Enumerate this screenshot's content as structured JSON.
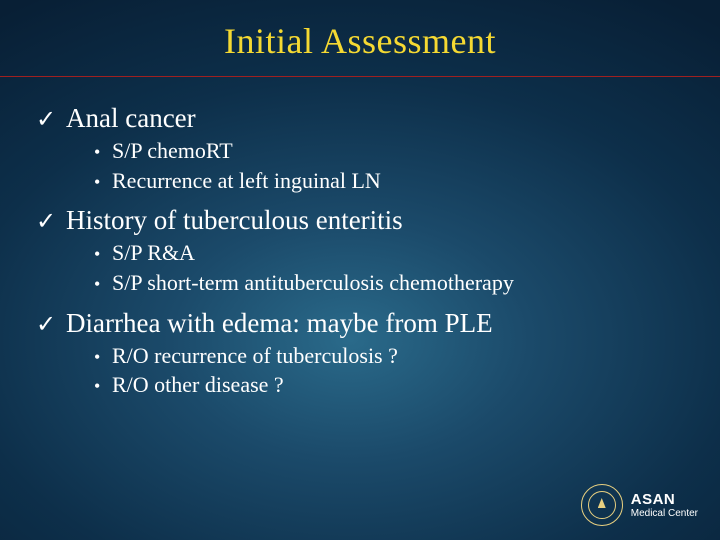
{
  "title": "Initial Assessment",
  "colors": {
    "title_color": "#f5d932",
    "text_color": "#ffffff",
    "divider_color": "#a02020",
    "bg_center": "#2a6a8a",
    "bg_edge": "#081f35",
    "logo_color": "#e8d080"
  },
  "typography": {
    "title_fontsize": 36,
    "main_fontsize": 27,
    "sub_fontsize": 22,
    "font_family": "Georgia, serif"
  },
  "items": [
    {
      "label": "Anal cancer",
      "sub": [
        "S/P chemoRT",
        "Recurrence at left inguinal LN"
      ]
    },
    {
      "label": "History of tuberculous enteritis",
      "sub": [
        "S/P R&A",
        "S/P short-term antituberculosis chemotherapy"
      ]
    },
    {
      "label": "Diarrhea with edema: maybe from PLE",
      "sub": [
        "R/O recurrence of tuberculosis ?",
        "R/O other disease ?"
      ]
    }
  ],
  "footer": {
    "line1": "ASAN",
    "line2": "Medical Center"
  }
}
